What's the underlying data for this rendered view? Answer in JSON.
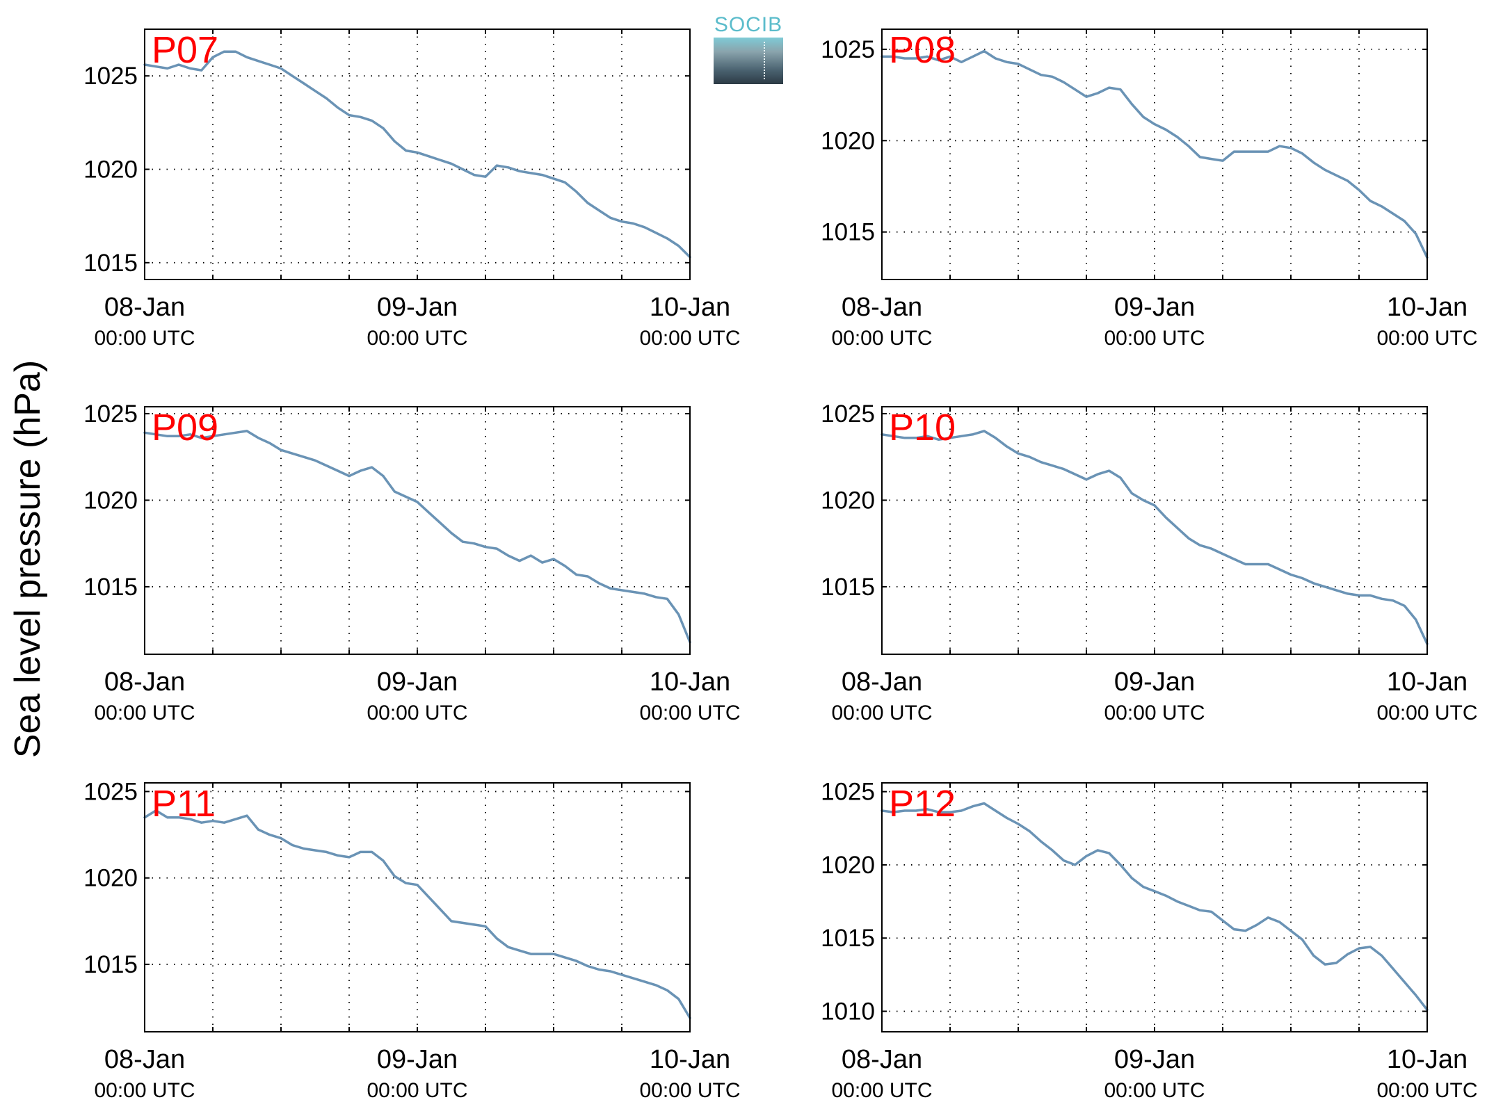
{
  "figure": {
    "ylabel": "Sea level pressure (hPa)",
    "logo_text": "SOCIB",
    "colors": {
      "line": "#6a93b5",
      "station_label": "#ff0000",
      "axes": "#000000"
    }
  },
  "chart_data": [
    {
      "type": "line",
      "station": "P07",
      "xticks": [
        "08-Jan",
        "09-Jan",
        "10-Jan"
      ],
      "xsubticks": [
        "00:00 UTC",
        "00:00 UTC",
        "00:00 UTC"
      ],
      "x_unit": "hours since 08-Jan 00:00 UTC",
      "xlim": [
        0,
        48
      ],
      "ylim": [
        1014.1,
        1027.5
      ],
      "yticks": [
        1015,
        1020,
        1025
      ],
      "grid": true,
      "series": [
        {
          "x": [
            0,
            1,
            2,
            3,
            4,
            5,
            6,
            7,
            8,
            9,
            10,
            11,
            12,
            13,
            14,
            15,
            16,
            17,
            18,
            19,
            20,
            21,
            22,
            23,
            24,
            25,
            26,
            27,
            28,
            29,
            30,
            31,
            32,
            33,
            34,
            35,
            36,
            37,
            38,
            39,
            40,
            41,
            42,
            43,
            44,
            45,
            46,
            47,
            48
          ],
          "y": [
            1025.6,
            1025.5,
            1025.4,
            1025.6,
            1025.4,
            1025.3,
            1026.0,
            1026.3,
            1026.3,
            1026.0,
            1025.8,
            1025.6,
            1025.4,
            1025.0,
            1024.6,
            1024.2,
            1023.8,
            1023.3,
            1022.9,
            1022.8,
            1022.6,
            1022.2,
            1021.5,
            1021.0,
            1020.9,
            1020.7,
            1020.5,
            1020.3,
            1020.0,
            1019.7,
            1019.6,
            1020.2,
            1020.1,
            1019.9,
            1019.8,
            1019.7,
            1019.5,
            1019.3,
            1018.8,
            1018.2,
            1017.8,
            1017.4,
            1017.2,
            1017.1,
            1016.9,
            1016.6,
            1016.3,
            1015.9,
            1015.3
          ]
        }
      ]
    },
    {
      "type": "line",
      "station": "P08",
      "xticks": [
        "08-Jan",
        "09-Jan",
        "10-Jan"
      ],
      "xsubticks": [
        "00:00 UTC",
        "00:00 UTC",
        "00:00 UTC"
      ],
      "x_unit": "hours since 08-Jan 00:00 UTC",
      "xlim": [
        0,
        48
      ],
      "ylim": [
        1012.4,
        1026.1
      ],
      "yticks": [
        1015,
        1020,
        1025
      ],
      "grid": true,
      "series": [
        {
          "x": [
            0,
            1,
            2,
            3,
            4,
            5,
            6,
            7,
            8,
            9,
            10,
            11,
            12,
            13,
            14,
            15,
            16,
            17,
            18,
            19,
            20,
            21,
            22,
            23,
            24,
            25,
            26,
            27,
            28,
            29,
            30,
            31,
            32,
            33,
            34,
            35,
            36,
            37,
            38,
            39,
            40,
            41,
            42,
            43,
            44,
            45,
            46,
            47,
            48
          ],
          "y": [
            1024.6,
            1024.6,
            1024.5,
            1024.5,
            1024.6,
            1024.4,
            1024.6,
            1024.3,
            1024.6,
            1024.9,
            1024.5,
            1024.3,
            1024.2,
            1023.9,
            1023.6,
            1023.5,
            1023.2,
            1022.8,
            1022.4,
            1022.6,
            1022.9,
            1022.8,
            1022.0,
            1021.3,
            1020.9,
            1020.6,
            1020.2,
            1019.7,
            1019.1,
            1019.0,
            1018.9,
            1019.4,
            1019.4,
            1019.4,
            1019.4,
            1019.7,
            1019.6,
            1019.3,
            1018.8,
            1018.4,
            1018.1,
            1017.8,
            1017.3,
            1016.7,
            1016.4,
            1016.0,
            1015.6,
            1014.9,
            1013.6
          ]
        }
      ]
    },
    {
      "type": "line",
      "station": "P09",
      "xticks": [
        "08-Jan",
        "09-Jan",
        "10-Jan"
      ],
      "xsubticks": [
        "00:00 UTC",
        "00:00 UTC",
        "00:00 UTC"
      ],
      "x_unit": "hours since 08-Jan 00:00 UTC",
      "xlim": [
        0,
        48
      ],
      "ylim": [
        1011.1,
        1025.4
      ],
      "yticks": [
        1015,
        1020,
        1025
      ],
      "grid": true,
      "series": [
        {
          "x": [
            0,
            1,
            2,
            3,
            4,
            5,
            6,
            7,
            8,
            9,
            10,
            11,
            12,
            13,
            14,
            15,
            16,
            17,
            18,
            19,
            20,
            21,
            22,
            23,
            24,
            25,
            26,
            27,
            28,
            29,
            30,
            31,
            32,
            33,
            34,
            35,
            36,
            37,
            38,
            39,
            40,
            41,
            42,
            43,
            44,
            45,
            46,
            47,
            48
          ],
          "y": [
            1023.9,
            1023.8,
            1023.7,
            1023.7,
            1023.8,
            1023.6,
            1023.7,
            1023.8,
            1023.9,
            1024.0,
            1023.6,
            1023.3,
            1022.9,
            1022.7,
            1022.5,
            1022.3,
            1022.0,
            1021.7,
            1021.4,
            1021.7,
            1021.9,
            1021.4,
            1020.5,
            1020.2,
            1019.9,
            1019.3,
            1018.7,
            1018.1,
            1017.6,
            1017.5,
            1017.3,
            1017.2,
            1016.8,
            1016.5,
            1016.8,
            1016.4,
            1016.6,
            1016.2,
            1015.7,
            1015.6,
            1015.2,
            1014.9,
            1014.8,
            1014.7,
            1014.6,
            1014.4,
            1014.3,
            1013.4,
            1011.8
          ]
        }
      ]
    },
    {
      "type": "line",
      "station": "P10",
      "xticks": [
        "08-Jan",
        "09-Jan",
        "10-Jan"
      ],
      "xsubticks": [
        "00:00 UTC",
        "00:00 UTC",
        "00:00 UTC"
      ],
      "x_unit": "hours since 08-Jan 00:00 UTC",
      "xlim": [
        0,
        48
      ],
      "ylim": [
        1011.1,
        1025.4
      ],
      "yticks": [
        1015,
        1020,
        1025
      ],
      "grid": true,
      "series": [
        {
          "x": [
            0,
            1,
            2,
            3,
            4,
            5,
            6,
            7,
            8,
            9,
            10,
            11,
            12,
            13,
            14,
            15,
            16,
            17,
            18,
            19,
            20,
            21,
            22,
            23,
            24,
            25,
            26,
            27,
            28,
            29,
            30,
            31,
            32,
            33,
            34,
            35,
            36,
            37,
            38,
            39,
            40,
            41,
            42,
            43,
            44,
            45,
            46,
            47,
            48
          ],
          "y": [
            1023.8,
            1023.7,
            1023.6,
            1023.6,
            1023.7,
            1023.5,
            1023.6,
            1023.7,
            1023.8,
            1024.0,
            1023.6,
            1023.1,
            1022.7,
            1022.5,
            1022.2,
            1022.0,
            1021.8,
            1021.5,
            1021.2,
            1021.5,
            1021.7,
            1021.3,
            1020.4,
            1020.0,
            1019.7,
            1019.0,
            1018.4,
            1017.8,
            1017.4,
            1017.2,
            1016.9,
            1016.6,
            1016.3,
            1016.3,
            1016.3,
            1016.0,
            1015.7,
            1015.5,
            1015.2,
            1015.0,
            1014.8,
            1014.6,
            1014.5,
            1014.5,
            1014.3,
            1014.2,
            1013.9,
            1013.1,
            1011.7
          ]
        }
      ]
    },
    {
      "type": "line",
      "station": "P11",
      "xticks": [
        "08-Jan",
        "09-Jan",
        "10-Jan"
      ],
      "xsubticks": [
        "00:00 UTC",
        "00:00 UTC",
        "00:00 UTC"
      ],
      "x_unit": "hours since 08-Jan 00:00 UTC",
      "xlim": [
        0,
        48
      ],
      "ylim": [
        1011.1,
        1025.5
      ],
      "yticks": [
        1015,
        1020,
        1025
      ],
      "grid": true,
      "series": [
        {
          "x": [
            0,
            1,
            2,
            3,
            4,
            5,
            6,
            7,
            8,
            9,
            10,
            11,
            12,
            13,
            14,
            15,
            16,
            17,
            18,
            19,
            20,
            21,
            22,
            23,
            24,
            25,
            26,
            27,
            28,
            29,
            30,
            31,
            32,
            33,
            34,
            35,
            36,
            37,
            38,
            39,
            40,
            41,
            42,
            43,
            44,
            45,
            46,
            47,
            48
          ],
          "y": [
            1023.5,
            1023.9,
            1023.5,
            1023.5,
            1023.4,
            1023.2,
            1023.3,
            1023.2,
            1023.4,
            1023.6,
            1022.8,
            1022.5,
            1022.3,
            1021.9,
            1021.7,
            1021.6,
            1021.5,
            1021.3,
            1021.2,
            1021.5,
            1021.5,
            1021.0,
            1020.1,
            1019.7,
            1019.6,
            1018.9,
            1018.2,
            1017.5,
            1017.4,
            1017.3,
            1017.2,
            1016.5,
            1016.0,
            1015.8,
            1015.6,
            1015.6,
            1015.6,
            1015.4,
            1015.2,
            1014.9,
            1014.7,
            1014.6,
            1014.4,
            1014.2,
            1014.0,
            1013.8,
            1013.5,
            1013.0,
            1011.9
          ]
        }
      ]
    },
    {
      "type": "line",
      "station": "P12",
      "xticks": [
        "08-Jan",
        "09-Jan",
        "10-Jan"
      ],
      "xsubticks": [
        "00:00 UTC",
        "00:00 UTC",
        "00:00 UTC"
      ],
      "x_unit": "hours since 08-Jan 00:00 UTC",
      "xlim": [
        0,
        48
      ],
      "ylim": [
        1008.6,
        1025.6
      ],
      "yticks": [
        1010,
        1015,
        1020,
        1025
      ],
      "grid": true,
      "series": [
        {
          "x": [
            0,
            1,
            2,
            3,
            4,
            5,
            6,
            7,
            8,
            9,
            10,
            11,
            12,
            13,
            14,
            15,
            16,
            17,
            18,
            19,
            20,
            21,
            22,
            23,
            24,
            25,
            26,
            27,
            28,
            29,
            30,
            31,
            32,
            33,
            34,
            35,
            36,
            37,
            38,
            39,
            40,
            41,
            42,
            43,
            44,
            45,
            46,
            47,
            48
          ],
          "y": [
            1023.7,
            1023.6,
            1023.7,
            1023.7,
            1023.8,
            1023.6,
            1023.6,
            1023.7,
            1024.0,
            1024.2,
            1023.7,
            1023.2,
            1022.8,
            1022.3,
            1021.6,
            1021.0,
            1020.3,
            1020.0,
            1020.6,
            1021.0,
            1020.8,
            1020.0,
            1019.1,
            1018.5,
            1018.2,
            1017.9,
            1017.5,
            1017.2,
            1016.9,
            1016.8,
            1016.2,
            1015.6,
            1015.5,
            1015.9,
            1016.4,
            1016.1,
            1015.5,
            1014.9,
            1013.8,
            1013.2,
            1013.3,
            1013.9,
            1014.3,
            1014.4,
            1013.8,
            1012.9,
            1012.0,
            1011.1,
            1010.1
          ]
        }
      ]
    }
  ]
}
